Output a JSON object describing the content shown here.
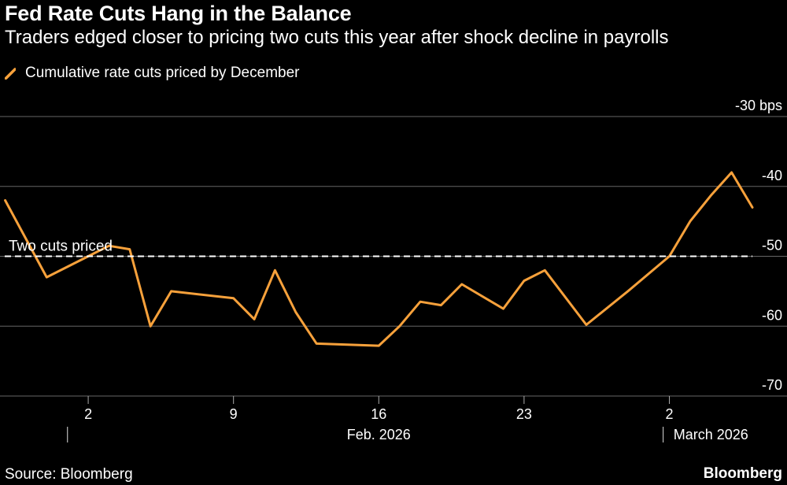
{
  "header": {
    "title": "Fed Rate Cuts Hang in the Balance",
    "subtitle": "Traders edged closer to pricing two cuts this year after shock decline in payrolls"
  },
  "legend": {
    "label": "Cumulative rate cuts priced by December"
  },
  "footer": {
    "source": "Source: Bloomberg",
    "brand": "Bloomberg"
  },
  "colors": {
    "line": "#f7a13b",
    "grid": "#666666",
    "reference": "#ffffff",
    "background": "#000000"
  },
  "chart_data": {
    "type": "line",
    "title": "Fed Rate Cuts Hang in the Balance",
    "ylabel": "bps",
    "ylim": [
      -70,
      -30
    ],
    "xlim": [
      -0.25,
      36
    ],
    "yticks": [
      {
        "value": -30,
        "label": "-30 bps"
      },
      {
        "value": -40,
        "label": "-40"
      },
      {
        "value": -50,
        "label": "-50"
      },
      {
        "value": -60,
        "label": "-60"
      },
      {
        "value": -70,
        "label": "-70"
      }
    ],
    "xticks": [
      {
        "pos": 4,
        "label": "2"
      },
      {
        "pos": 11,
        "label": "9"
      },
      {
        "pos": 18,
        "label": "16"
      },
      {
        "pos": 25,
        "label": "23"
      },
      {
        "pos": 32,
        "label": "2"
      }
    ],
    "month_labels": [
      {
        "pos": 18,
        "label": "Feb. 2026"
      },
      {
        "pos": 34,
        "label": "March 2026"
      }
    ],
    "month_dividers": [
      3,
      31.7
    ],
    "reference_line": {
      "value": -50,
      "label": "Two cuts priced"
    },
    "series": [
      {
        "name": "Cumulative rate cuts priced by December",
        "x": [
          0,
          2,
          4,
          5,
          6,
          7,
          8,
          11,
          12,
          13,
          14,
          15,
          18,
          19,
          20,
          21,
          22,
          24,
          25,
          26,
          28,
          30,
          32,
          33,
          34,
          35,
          36
        ],
        "values": [
          -42,
          -53,
          -50,
          -48.5,
          -49,
          -60,
          -55,
          -56,
          -59,
          -52,
          -58,
          -62.5,
          -62.8,
          -60,
          -56.5,
          -57,
          -54,
          -57.5,
          -53.5,
          -52,
          -59.8,
          -55,
          -50,
          -45,
          -41.3,
          -38,
          -43
        ]
      }
    ]
  }
}
